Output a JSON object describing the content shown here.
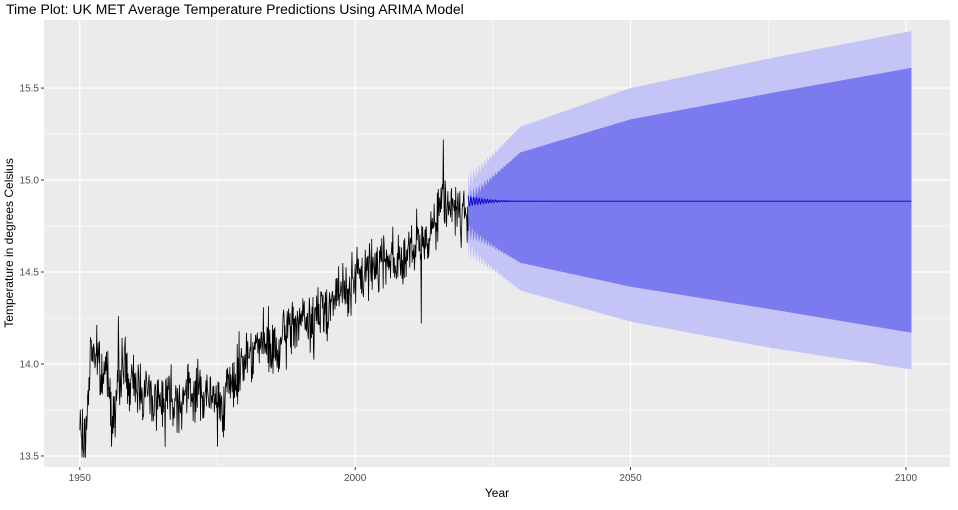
{
  "chart_data": {
    "type": "line",
    "title": "Time Plot: UK MET Average Temperature Predictions Using ARIMA Model",
    "xlabel": "Year",
    "ylabel": "Temperature in degrees Celsius",
    "xlim": [
      1943.5,
      2108
    ],
    "ylim": [
      13.44,
      15.87
    ],
    "x_ticks": [
      1950,
      2000,
      2050,
      2100
    ],
    "x_tick_labels": [
      "1950",
      "2000",
      "2050",
      "2100"
    ],
    "y_ticks": [
      13.5,
      14.0,
      14.5,
      15.0,
      15.5
    ],
    "y_tick_labels": [
      "13.5",
      "14.0",
      "14.5",
      "15.0",
      "15.5"
    ],
    "grid": true,
    "legend": "none",
    "colors": {
      "panel": "#ebebeb",
      "grid": "#ffffff",
      "observed": "#000000",
      "forecast": "#0000cc",
      "band80": "#7b7bef",
      "band95": "#c4c4f7"
    },
    "observed_anchors": [
      [
        1950.0,
        13.65
      ],
      [
        1951.0,
        13.55
      ],
      [
        1952.0,
        14.1
      ],
      [
        1953.0,
        14.05
      ],
      [
        1954.0,
        13.9
      ],
      [
        1955.0,
        14.0
      ],
      [
        1956.0,
        13.7
      ],
      [
        1957.0,
        13.85
      ],
      [
        1958.0,
        14.05
      ],
      [
        1959.0,
        13.85
      ],
      [
        1960.0,
        13.9
      ],
      [
        1962.0,
        13.85
      ],
      [
        1964.0,
        13.8
      ],
      [
        1966.0,
        13.85
      ],
      [
        1968.0,
        13.8
      ],
      [
        1970.0,
        13.85
      ],
      [
        1972.0,
        13.85
      ],
      [
        1974.0,
        13.8
      ],
      [
        1976.0,
        13.8
      ],
      [
        1978.0,
        13.9
      ],
      [
        1980.0,
        14.05
      ],
      [
        1982.0,
        14.1
      ],
      [
        1984.0,
        14.1
      ],
      [
        1986.0,
        14.05
      ],
      [
        1988.0,
        14.2
      ],
      [
        1990.0,
        14.25
      ],
      [
        1992.0,
        14.2
      ],
      [
        1994.0,
        14.3
      ],
      [
        1996.0,
        14.35
      ],
      [
        1998.0,
        14.4
      ],
      [
        2000.0,
        14.45
      ],
      [
        2002.0,
        14.5
      ],
      [
        2004.0,
        14.55
      ],
      [
        2006.0,
        14.6
      ],
      [
        2008.0,
        14.55
      ],
      [
        2010.0,
        14.6
      ],
      [
        2012.0,
        14.65
      ],
      [
        2014.0,
        14.75
      ],
      [
        2016.0,
        14.9
      ],
      [
        2018.0,
        14.85
      ],
      [
        2019.0,
        14.82
      ],
      [
        2020.5,
        14.8
      ]
    ],
    "observed_extremes": [
      [
        1951.0,
        13.49
      ],
      [
        1957.0,
        14.26
      ],
      [
        1965.5,
        13.55
      ],
      [
        1975.0,
        13.55
      ],
      [
        2016.0,
        15.22
      ],
      [
        2012.0,
        14.22
      ]
    ],
    "forecast_start": 2020.5,
    "forecast_end": 2101.0,
    "forecast_mean": 14.885,
    "band80_upper": [
      [
        2020.5,
        14.9
      ],
      [
        2030,
        15.15
      ],
      [
        2050,
        15.33
      ],
      [
        2075,
        15.47
      ],
      [
        2101,
        15.61
      ]
    ],
    "band80_lower": [
      [
        2020.5,
        14.72
      ],
      [
        2030,
        14.55
      ],
      [
        2050,
        14.42
      ],
      [
        2075,
        14.3
      ],
      [
        2101,
        14.17
      ]
    ],
    "band95_upper": [
      [
        2020.5,
        15.0
      ],
      [
        2030,
        15.29
      ],
      [
        2050,
        15.5
      ],
      [
        2075,
        15.66
      ],
      [
        2101,
        15.81
      ]
    ],
    "band95_lower": [
      [
        2020.5,
        14.62
      ],
      [
        2030,
        14.4
      ],
      [
        2050,
        14.23
      ],
      [
        2075,
        14.09
      ],
      [
        2101,
        13.97
      ]
    ]
  }
}
